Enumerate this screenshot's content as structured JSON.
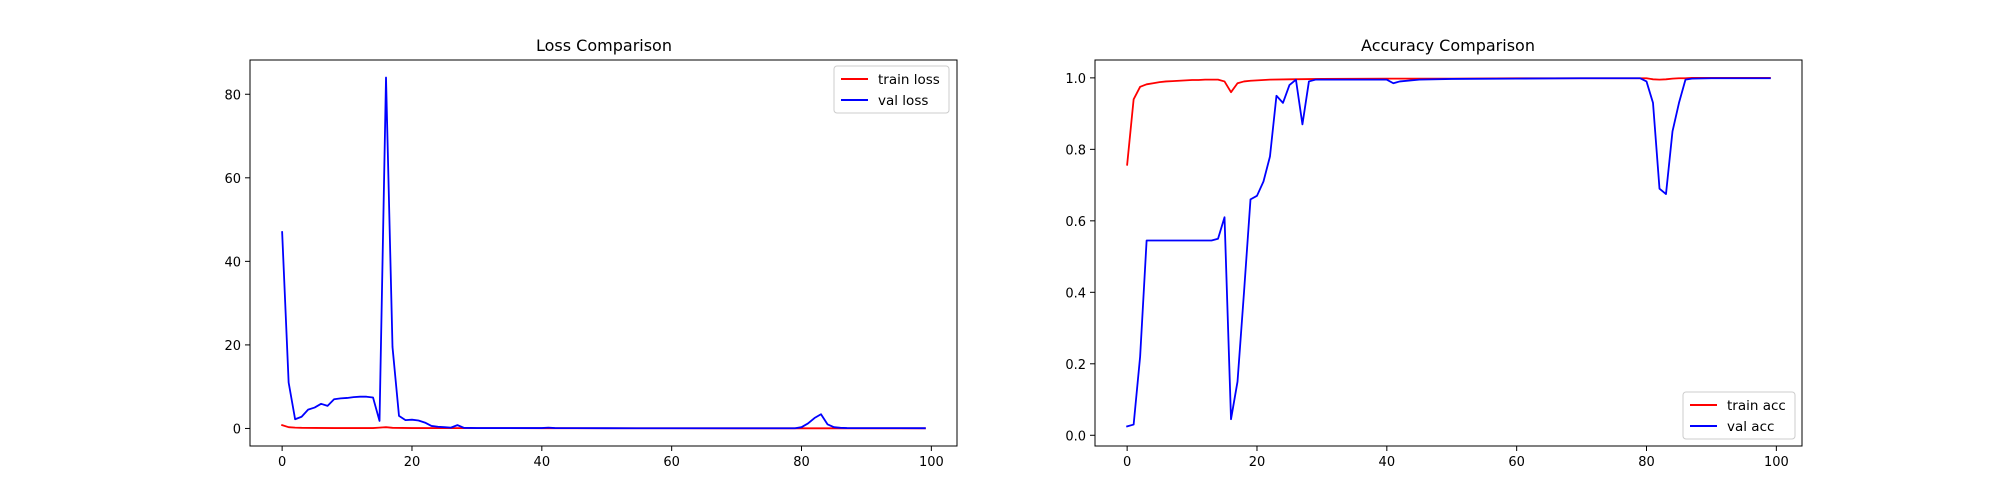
{
  "chart_data": [
    {
      "type": "line",
      "title": "Loss Comparison",
      "xlabel": "",
      "ylabel": "",
      "xlim": [
        -4.95,
        103.95
      ],
      "ylim": [
        -4.2,
        88.2
      ],
      "xticks": [
        0,
        20,
        40,
        60,
        80,
        100
      ],
      "yticks": [
        0,
        20,
        40,
        60,
        80
      ],
      "legend": "top-right",
      "grid": false,
      "series": [
        {
          "name": "train loss",
          "color": "#ff0000",
          "x": [
            0,
            1,
            2,
            3,
            5,
            8,
            10,
            14,
            15,
            16,
            17,
            20,
            30,
            40,
            50,
            60,
            70,
            80,
            90,
            99
          ],
          "y": [
            0.8,
            0.3,
            0.2,
            0.15,
            0.12,
            0.1,
            0.1,
            0.1,
            0.2,
            0.3,
            0.15,
            0.1,
            0.08,
            0.06,
            0.05,
            0.05,
            0.04,
            0.04,
            0.03,
            0.03
          ]
        },
        {
          "name": "val loss",
          "color": "#0000ff",
          "x": [
            0,
            1,
            2,
            3,
            4,
            5,
            6,
            7,
            8,
            9,
            10,
            11,
            12,
            13,
            14,
            15,
            16,
            17,
            18,
            19,
            20,
            21,
            22,
            23,
            24,
            25,
            26,
            27,
            28,
            29,
            30,
            35,
            40,
            41,
            42,
            45,
            50,
            60,
            70,
            79,
            80,
            81,
            82,
            83,
            84,
            85,
            86,
            87,
            90,
            95,
            99
          ],
          "y": [
            47,
            11,
            2.2,
            2.8,
            4.5,
            5.0,
            5.9,
            5.4,
            7.0,
            7.2,
            7.3,
            7.5,
            7.6,
            7.6,
            7.4,
            1.8,
            84,
            19.5,
            3.0,
            2.0,
            2.1,
            1.9,
            1.4,
            0.6,
            0.4,
            0.3,
            0.2,
            0.8,
            0.15,
            0.12,
            0.1,
            0.1,
            0.1,
            0.2,
            0.1,
            0.08,
            0.06,
            0.05,
            0.05,
            0.05,
            0.3,
            1.2,
            2.5,
            3.4,
            1.0,
            0.3,
            0.15,
            0.1,
            0.08,
            0.07,
            0.06
          ]
        }
      ]
    },
    {
      "type": "line",
      "title": "Accuracy Comparison",
      "xlabel": "",
      "ylabel": "",
      "xlim": [
        -4.95,
        103.95
      ],
      "ylim": [
        -0.03,
        1.05
      ],
      "xticks": [
        0,
        20,
        40,
        60,
        80,
        100
      ],
      "yticks": [
        0.0,
        0.2,
        0.4,
        0.6,
        0.8,
        1.0
      ],
      "ytick_labels": [
        "0.0",
        "0.2",
        "0.4",
        "0.6",
        "0.8",
        "1.0"
      ],
      "legend": "bottom-right",
      "grid": false,
      "series": [
        {
          "name": "train acc",
          "color": "#ff0000",
          "x": [
            0,
            1,
            2,
            3,
            4,
            5,
            6,
            7,
            8,
            9,
            10,
            11,
            12,
            13,
            14,
            15,
            16,
            17,
            18,
            19,
            20,
            22,
            25,
            30,
            40,
            50,
            60,
            70,
            80,
            81,
            82,
            83,
            84,
            85,
            86,
            87,
            90,
            99
          ],
          "y": [
            0.757,
            0.94,
            0.975,
            0.982,
            0.985,
            0.988,
            0.99,
            0.991,
            0.992,
            0.993,
            0.994,
            0.994,
            0.995,
            0.995,
            0.995,
            0.99,
            0.96,
            0.985,
            0.99,
            0.992,
            0.993,
            0.995,
            0.996,
            0.997,
            0.998,
            0.998,
            0.999,
            0.999,
            0.999,
            0.996,
            0.995,
            0.996,
            0.998,
            0.999,
            0.999,
            1.0,
            1.0,
            1.0
          ]
        },
        {
          "name": "val acc",
          "color": "#0000ff",
          "x": [
            0,
            1,
            2,
            3,
            4,
            5,
            6,
            7,
            8,
            9,
            10,
            11,
            12,
            13,
            14,
            15,
            16,
            17,
            18,
            19,
            20,
            21,
            22,
            23,
            24,
            25,
            26,
            27,
            28,
            29,
            30,
            35,
            40,
            41,
            42,
            45,
            50,
            60,
            70,
            79,
            80,
            81,
            82,
            83,
            84,
            85,
            86,
            87,
            90,
            95,
            99
          ],
          "y": [
            0.025,
            0.03,
            0.22,
            0.545,
            0.545,
            0.545,
            0.545,
            0.545,
            0.545,
            0.545,
            0.545,
            0.545,
            0.545,
            0.545,
            0.55,
            0.61,
            0.045,
            0.15,
            0.4,
            0.66,
            0.67,
            0.71,
            0.78,
            0.95,
            0.93,
            0.98,
            0.995,
            0.87,
            0.99,
            0.995,
            0.995,
            0.995,
            0.995,
            0.985,
            0.99,
            0.995,
            0.997,
            0.998,
            0.999,
            0.999,
            0.99,
            0.93,
            0.69,
            0.675,
            0.85,
            0.93,
            0.995,
            0.998,
            0.999,
            0.999,
            0.999
          ]
        }
      ]
    }
  ]
}
